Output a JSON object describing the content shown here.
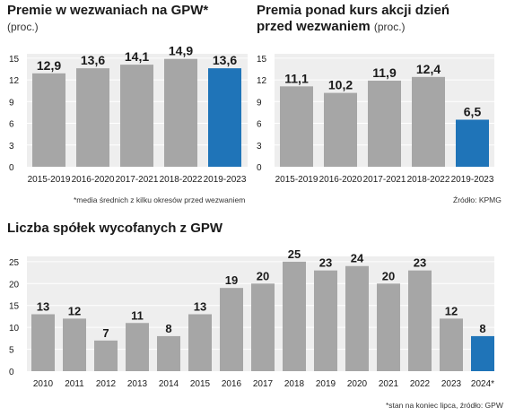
{
  "colors": {
    "bar": "#a6a6a6",
    "highlight": "#1f74b8",
    "plot_bg": "#eeeeee",
    "grid": "#ffffff",
    "text": "#1a1a1a"
  },
  "chart_data": [
    {
      "type": "bar",
      "title": "Premie w wezwaniach na GPW*",
      "unit": "(proc.)",
      "categories": [
        "2015-2019",
        "2016-2020",
        "2017-2021",
        "2018-2022",
        "2019-2023"
      ],
      "values": [
        12.9,
        13.6,
        14.1,
        14.9,
        13.6
      ],
      "value_labels": [
        "12,9",
        "13,6",
        "14,1",
        "14,9",
        "13,6"
      ],
      "highlight_index": 4,
      "yticks": [
        0,
        3,
        6,
        9,
        12,
        15
      ],
      "ylim": [
        0,
        15.6
      ],
      "grid": true,
      "note": "*media średnich z kilku okresów przed wezwaniem"
    },
    {
      "type": "bar",
      "title": "Premia ponad kurs akcji dzień",
      "title_line2": "przed wezwaniem",
      "unit": "(proc.)",
      "categories": [
        "2015-2019",
        "2016-2020",
        "2017-2021",
        "2018-2022",
        "2019-2023"
      ],
      "values": [
        11.1,
        10.2,
        11.9,
        12.4,
        6.5
      ],
      "value_labels": [
        "11,1",
        "10,2",
        "11,9",
        "12,4",
        "6,5"
      ],
      "highlight_index": 4,
      "yticks": [
        0,
        3,
        6,
        9,
        12,
        15
      ],
      "ylim": [
        0,
        15.6
      ],
      "grid": true,
      "note": "Źródło: KPMG"
    },
    {
      "type": "bar",
      "title": "Liczba spółek wycofanych z GPW",
      "categories": [
        "2010",
        "2011",
        "2012",
        "2013",
        "2014",
        "2015",
        "2016",
        "2017",
        "2018",
        "2019",
        "2020",
        "2021",
        "2022",
        "2023",
        "2024*"
      ],
      "values": [
        13,
        12,
        7,
        11,
        8,
        13,
        19,
        20,
        25,
        23,
        24,
        20,
        23,
        12,
        8
      ],
      "value_labels": [
        "13",
        "12",
        "7",
        "11",
        "8",
        "13",
        "19",
        "20",
        "25",
        "23",
        "24",
        "20",
        "23",
        "12",
        "8"
      ],
      "highlight_index": 14,
      "yticks": [
        0,
        5,
        10,
        15,
        20,
        25
      ],
      "ylim": [
        0,
        26.2
      ],
      "grid": true,
      "note": "*stan na koniec lipca, źródło: GPW"
    }
  ]
}
